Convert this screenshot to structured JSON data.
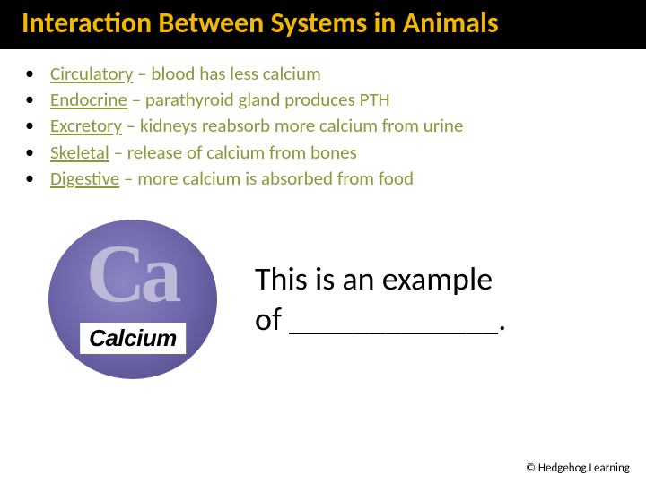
{
  "title": "Interaction Between Systems in Animals",
  "title_color": "#f2b800",
  "title_bg": "#000000",
  "bullets": [
    {
      "system": "Circulatory",
      "desc": " – blood has less calcium"
    },
    {
      "system": "Endocrine",
      "desc": " – parathyroid gland produces PTH"
    },
    {
      "system": "Excretory",
      "desc": " – kidneys reabsorb more calcium from urine"
    },
    {
      "system": "Skeletal",
      "desc": " – release of calcium from bones"
    },
    {
      "system": "Digestive",
      "desc": " – more calcium is absorbed from food"
    }
  ],
  "bullet_text_color": "#889a3a",
  "bullet_dot_color": "#000000",
  "calcium": {
    "symbol": "Ca",
    "label": "Calcium",
    "circle_color": "#6a64a8",
    "symbol_color": "#bdb9d9"
  },
  "example_line1": "This is an example",
  "example_line2": "of _____________.",
  "footer": "© Hedgehog Learning"
}
